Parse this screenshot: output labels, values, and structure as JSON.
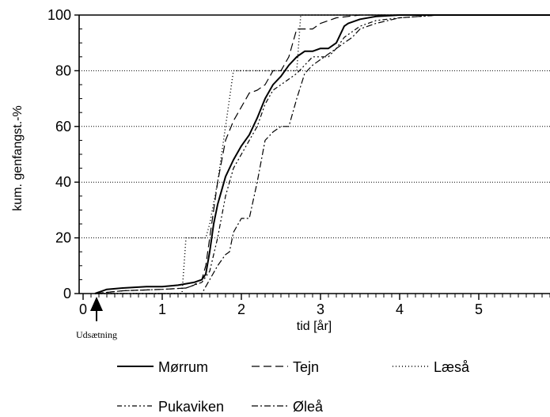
{
  "chart_data": {
    "type": "line",
    "xlabel": "tid [år]",
    "ylabel": "kum. genfangst.-%",
    "xlim": [
      -0.05,
      5.9
    ],
    "ylim": [
      0,
      100
    ],
    "x_ticks": [
      0,
      1,
      2,
      3,
      4,
      5
    ],
    "y_ticks": [
      0,
      20,
      40,
      60,
      80,
      100
    ],
    "grid": "horizontal",
    "legend_placement": "bottom",
    "annotation": {
      "text": "Udsætning",
      "x": 0.15,
      "marker": "arrow-up"
    },
    "series": [
      {
        "name": "Mørrum",
        "dash": "solid",
        "width": 2,
        "x": [
          0.15,
          0.3,
          0.5,
          0.8,
          1.0,
          1.2,
          1.4,
          1.5,
          1.55,
          1.6,
          1.65,
          1.7,
          1.75,
          1.8,
          1.9,
          2.0,
          2.1,
          2.2,
          2.3,
          2.4,
          2.5,
          2.6,
          2.7,
          2.8,
          2.9,
          3.0,
          3.1,
          3.2,
          3.3,
          3.35,
          3.5,
          3.7,
          4.0,
          4.5,
          5.0,
          5.9
        ],
        "y": [
          0,
          1.5,
          2,
          2.5,
          2.5,
          3,
          4,
          5,
          7,
          15,
          25,
          32,
          37,
          42,
          48,
          53,
          57,
          63,
          70,
          75,
          78,
          82,
          85,
          87,
          87,
          88,
          88,
          90,
          96,
          97,
          98.5,
          99.5,
          100,
          100,
          100,
          100
        ]
      },
      {
        "name": "Tejn",
        "dash": "10,5",
        "width": 1.2,
        "x": [
          0.15,
          0.5,
          1.0,
          1.3,
          1.4,
          1.5,
          1.55,
          1.6,
          1.7,
          1.8,
          1.9,
          2.0,
          2.1,
          2.2,
          2.3,
          2.4,
          2.5,
          2.6,
          2.7,
          2.9,
          3.0,
          3.2,
          3.5,
          4.0,
          5.9
        ],
        "y": [
          0,
          1,
          1.5,
          2,
          3,
          5,
          10,
          20,
          40,
          55,
          62,
          67,
          72,
          73,
          75,
          80,
          80,
          85,
          95,
          95,
          97,
          99,
          100,
          100,
          100
        ]
      },
      {
        "name": "Læså",
        "dash": "1,3",
        "width": 1.5,
        "x": [
          0.15,
          1.25,
          1.3,
          1.33,
          1.38,
          1.45,
          1.5,
          1.55,
          1.6,
          1.7,
          1.8,
          1.9,
          2.0,
          2.5,
          2.6,
          2.7,
          2.75,
          3.0,
          5.9
        ],
        "y": [
          0,
          0,
          20,
          20,
          20,
          20,
          20,
          20,
          25,
          40,
          60,
          80,
          80,
          80,
          80,
          80,
          100,
          100,
          100
        ]
      },
      {
        "name": "Pukaviken",
        "dash": "6,3,2,3,2,3",
        "width": 1.2,
        "x": [
          0.15,
          0.5,
          1.0,
          1.3,
          1.4,
          1.5,
          1.6,
          1.7,
          1.8,
          1.9,
          2.0,
          2.1,
          2.2,
          2.3,
          2.4,
          2.5,
          2.6,
          2.7,
          2.8,
          2.9,
          3.0,
          3.1,
          3.2,
          3.3,
          3.4,
          3.5,
          3.7,
          4.0,
          4.5,
          5.0,
          5.9
        ],
        "y": [
          0,
          1,
          1.5,
          2,
          3,
          4,
          8,
          20,
          35,
          45,
          50,
          55,
          60,
          68,
          73,
          75,
          77,
          79,
          82,
          85,
          85,
          85,
          88,
          92,
          94,
          96,
          98,
          99,
          100,
          100,
          100
        ]
      },
      {
        "name": "Øleå",
        "dash": "8,3,2,3",
        "width": 1.2,
        "x": [
          0.15,
          1.5,
          1.6,
          1.7,
          1.8,
          1.85,
          1.9,
          2.0,
          2.05,
          2.1,
          2.2,
          2.3,
          2.4,
          2.5,
          2.6,
          2.7,
          2.8,
          2.9,
          3.0,
          3.1,
          3.2,
          3.3,
          3.4,
          3.5,
          3.7,
          4.0,
          4.5,
          5.0,
          5.9
        ],
        "y": [
          0,
          0,
          5,
          10,
          14,
          15,
          22,
          27,
          27,
          27,
          40,
          55,
          58,
          60,
          60,
          70,
          79,
          82,
          84,
          86,
          88,
          90,
          92,
          95,
          97,
          99,
          100,
          100,
          100
        ]
      }
    ]
  }
}
